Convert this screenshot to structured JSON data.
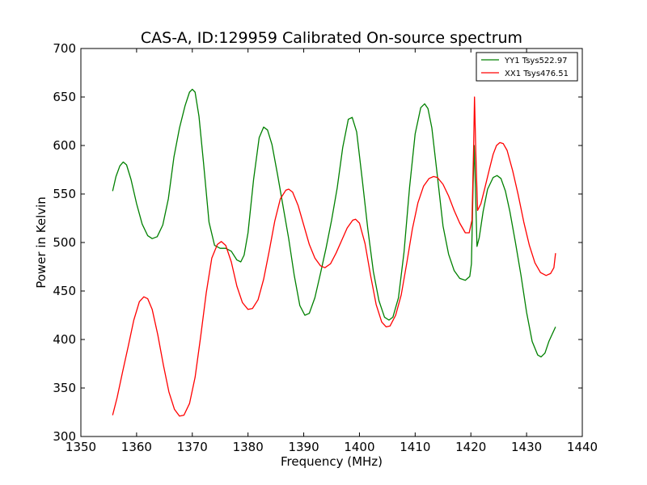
{
  "chart_data": {
    "type": "line",
    "title": "CAS-A, ID:129959 Calibrated On-source spectrum",
    "xlabel": "Frequency (MHz)",
    "ylabel": "Power in Kelvin",
    "xlim": [
      1350,
      1440
    ],
    "ylim": [
      300,
      700
    ],
    "xticks": [
      1350,
      1360,
      1370,
      1380,
      1390,
      1400,
      1410,
      1420,
      1430,
      1440
    ],
    "yticks": [
      300,
      350,
      400,
      450,
      500,
      550,
      600,
      650,
      700
    ],
    "grid": false,
    "legend_position": "top-right",
    "series": [
      {
        "name": "YY1 Tsys522.97",
        "color": "#008000",
        "points": [
          [
            1355.7,
            553
          ],
          [
            1356.3,
            568
          ],
          [
            1357.0,
            579
          ],
          [
            1357.6,
            583
          ],
          [
            1358.2,
            580
          ],
          [
            1359.0,
            565
          ],
          [
            1360.0,
            540
          ],
          [
            1361.0,
            519
          ],
          [
            1362.0,
            507
          ],
          [
            1362.8,
            504
          ],
          [
            1363.7,
            506
          ],
          [
            1364.7,
            518
          ],
          [
            1365.7,
            545
          ],
          [
            1366.7,
            588
          ],
          [
            1367.7,
            618
          ],
          [
            1368.7,
            641
          ],
          [
            1369.5,
            655
          ],
          [
            1370.0,
            658
          ],
          [
            1370.5,
            655
          ],
          [
            1371.2,
            630
          ],
          [
            1372.0,
            583
          ],
          [
            1373.0,
            521
          ],
          [
            1374.0,
            497
          ],
          [
            1375.0,
            494
          ],
          [
            1376.0,
            494
          ],
          [
            1377.0,
            491
          ],
          [
            1378.0,
            482
          ],
          [
            1378.7,
            480
          ],
          [
            1379.3,
            487
          ],
          [
            1380.0,
            510
          ],
          [
            1381.0,
            565
          ],
          [
            1382.0,
            608
          ],
          [
            1382.8,
            619
          ],
          [
            1383.5,
            616
          ],
          [
            1384.3,
            601
          ],
          [
            1385.3,
            570
          ],
          [
            1386.3,
            537
          ],
          [
            1387.3,
            504
          ],
          [
            1388.3,
            466
          ],
          [
            1389.3,
            435
          ],
          [
            1390.2,
            425
          ],
          [
            1391.0,
            427
          ],
          [
            1392.0,
            443
          ],
          [
            1393.0,
            468
          ],
          [
            1394.0,
            494
          ],
          [
            1395.0,
            523
          ],
          [
            1396.0,
            556
          ],
          [
            1397.0,
            598
          ],
          [
            1398.0,
            627
          ],
          [
            1398.7,
            629
          ],
          [
            1399.5,
            614
          ],
          [
            1400.5,
            565
          ],
          [
            1401.5,
            514
          ],
          [
            1402.5,
            470
          ],
          [
            1403.5,
            440
          ],
          [
            1404.5,
            423
          ],
          [
            1405.3,
            420
          ],
          [
            1406.0,
            423
          ],
          [
            1407.0,
            443
          ],
          [
            1408.0,
            490
          ],
          [
            1409.0,
            557
          ],
          [
            1410.0,
            612
          ],
          [
            1411.0,
            639
          ],
          [
            1411.7,
            643
          ],
          [
            1412.3,
            638
          ],
          [
            1413.0,
            618
          ],
          [
            1414.0,
            568
          ],
          [
            1415.0,
            517
          ],
          [
            1416.0,
            488
          ],
          [
            1417.0,
            471
          ],
          [
            1418.0,
            463
          ],
          [
            1419.0,
            461
          ],
          [
            1419.8,
            465
          ],
          [
            1420.1,
            478
          ],
          [
            1420.4,
            560
          ],
          [
            1420.6,
            600
          ],
          [
            1420.8,
            560
          ],
          [
            1421.1,
            496
          ],
          [
            1421.5,
            505
          ],
          [
            1422.2,
            532
          ],
          [
            1423.0,
            555
          ],
          [
            1424.0,
            567
          ],
          [
            1424.7,
            569
          ],
          [
            1425.4,
            566
          ],
          [
            1426.2,
            553
          ],
          [
            1427.0,
            532
          ],
          [
            1428.0,
            500
          ],
          [
            1429.0,
            466
          ],
          [
            1430.0,
            428
          ],
          [
            1431.0,
            398
          ],
          [
            1432.0,
            384
          ],
          [
            1432.6,
            382
          ],
          [
            1433.3,
            386
          ],
          [
            1434.0,
            398
          ],
          [
            1435.2,
            413
          ]
        ]
      },
      {
        "name": "XX1 Tsys476.51",
        "color": "#ff0000",
        "points": [
          [
            1355.7,
            322
          ],
          [
            1356.5,
            340
          ],
          [
            1357.5,
            367
          ],
          [
            1358.5,
            393
          ],
          [
            1359.5,
            420
          ],
          [
            1360.5,
            439
          ],
          [
            1361.3,
            444
          ],
          [
            1362.0,
            442
          ],
          [
            1362.8,
            431
          ],
          [
            1363.8,
            405
          ],
          [
            1364.8,
            374
          ],
          [
            1365.8,
            346
          ],
          [
            1366.8,
            328
          ],
          [
            1367.7,
            321
          ],
          [
            1368.5,
            322
          ],
          [
            1369.5,
            334
          ],
          [
            1370.5,
            361
          ],
          [
            1371.5,
            403
          ],
          [
            1372.5,
            448
          ],
          [
            1373.5,
            484
          ],
          [
            1374.5,
            498
          ],
          [
            1375.2,
            501
          ],
          [
            1376.0,
            497
          ],
          [
            1377.0,
            480
          ],
          [
            1378.0,
            455
          ],
          [
            1379.0,
            438
          ],
          [
            1380.0,
            431
          ],
          [
            1380.8,
            432
          ],
          [
            1381.8,
            441
          ],
          [
            1382.8,
            462
          ],
          [
            1383.8,
            491
          ],
          [
            1384.8,
            522
          ],
          [
            1385.8,
            545
          ],
          [
            1386.8,
            554
          ],
          [
            1387.3,
            555
          ],
          [
            1388.0,
            552
          ],
          [
            1389.0,
            538
          ],
          [
            1390.0,
            518
          ],
          [
            1391.0,
            498
          ],
          [
            1392.0,
            484
          ],
          [
            1393.0,
            476
          ],
          [
            1393.8,
            474
          ],
          [
            1394.8,
            478
          ],
          [
            1395.8,
            489
          ],
          [
            1396.8,
            502
          ],
          [
            1397.8,
            515
          ],
          [
            1398.8,
            523
          ],
          [
            1399.3,
            524
          ],
          [
            1400.0,
            520
          ],
          [
            1401.0,
            499
          ],
          [
            1402.0,
            466
          ],
          [
            1403.0,
            436
          ],
          [
            1404.0,
            418
          ],
          [
            1404.8,
            413
          ],
          [
            1405.5,
            414
          ],
          [
            1406.5,
            425
          ],
          [
            1407.5,
            446
          ],
          [
            1408.5,
            479
          ],
          [
            1409.5,
            514
          ],
          [
            1410.5,
            541
          ],
          [
            1411.5,
            558
          ],
          [
            1412.5,
            566
          ],
          [
            1413.3,
            568
          ],
          [
            1414.0,
            567
          ],
          [
            1415.0,
            560
          ],
          [
            1416.0,
            548
          ],
          [
            1417.0,
            533
          ],
          [
            1418.0,
            520
          ],
          [
            1419.0,
            510
          ],
          [
            1419.7,
            510
          ],
          [
            1420.2,
            523
          ],
          [
            1420.5,
            600
          ],
          [
            1420.65,
            650
          ],
          [
            1420.9,
            590
          ],
          [
            1421.2,
            533
          ],
          [
            1421.8,
            540
          ],
          [
            1422.5,
            556
          ],
          [
            1423.3,
            575
          ],
          [
            1424.0,
            591
          ],
          [
            1424.6,
            600
          ],
          [
            1425.2,
            603
          ],
          [
            1425.8,
            602
          ],
          [
            1426.5,
            595
          ],
          [
            1427.5,
            574
          ],
          [
            1428.5,
            549
          ],
          [
            1429.5,
            521
          ],
          [
            1430.5,
            497
          ],
          [
            1431.5,
            479
          ],
          [
            1432.5,
            469
          ],
          [
            1433.5,
            466
          ],
          [
            1434.3,
            468
          ],
          [
            1434.9,
            474
          ],
          [
            1435.2,
            489
          ]
        ]
      }
    ]
  }
}
